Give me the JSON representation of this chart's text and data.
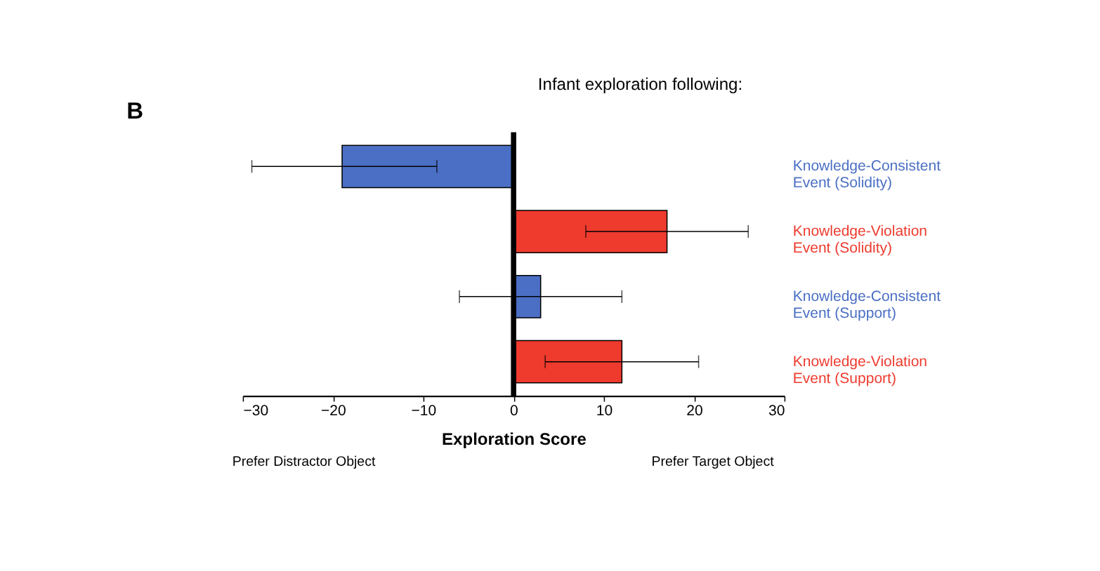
{
  "chart_data": {
    "type": "bar",
    "orientation": "horizontal",
    "title": "Infant exploration following:",
    "xlabel": "Exploration Score",
    "categories": [
      "Knowledge-Consistent\nEvent (Solidity)",
      "Knowledge-Violation\nEvent (Solidity)",
      "Knowledge-Consistent\nEvent (Support)",
      "Knowledge-Violation\nEvent (Support)"
    ],
    "values": [
      -19,
      17,
      3,
      12
    ],
    "colors": [
      "#4a6fc4",
      "#ee3b2e",
      "#4a6fc4",
      "#ee3b2e"
    ],
    "errors": [
      [
        -29,
        -8.5
      ],
      [
        8,
        26
      ],
      [
        -6,
        12
      ],
      [
        3.5,
        20.5
      ]
    ],
    "xlim": [
      -30,
      30
    ],
    "xticks": [
      -30,
      -20,
      -10,
      0,
      10,
      20,
      30
    ],
    "ref_lines": [
      {
        "axis": "x",
        "value": 0,
        "color": "#000000"
      }
    ],
    "annotations": [
      "B",
      "Prefer Distractor Object",
      "Prefer Target Object"
    ],
    "grid": false
  }
}
